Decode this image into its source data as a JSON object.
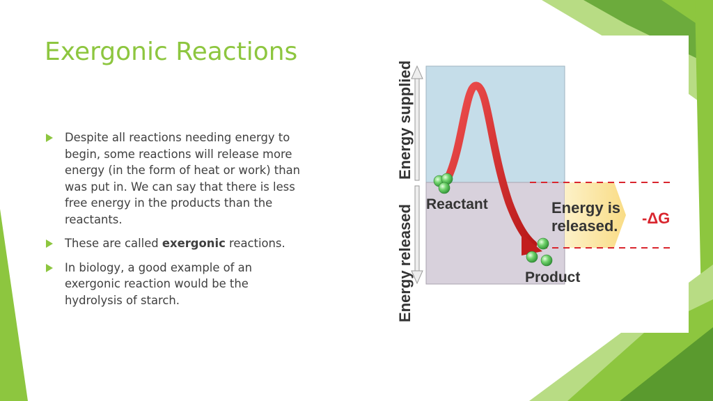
{
  "slide": {
    "title": "Exergonic Reactions",
    "colors": {
      "accent": "#8dc63f",
      "accent_dark": "#5a9a2e",
      "body_text": "#404040",
      "supplied_region": "#c5dde9",
      "released_region": "#d8d1dc",
      "curve": "#d62222",
      "energy_band": "#fde9b0"
    },
    "bullets": [
      {
        "text": "Despite all reactions needing energy to begin, some reactions will release more energy (in the form of heat or work) than was put in. We can say that there is less free energy in the products than the reactants."
      },
      {
        "before": "These are called ",
        "bold": "exergonic",
        "after": " reactions."
      },
      {
        "text": "In biology, a good example of an exergonic reaction would be the hydrolysis of starch."
      }
    ]
  },
  "diagram": {
    "axis_top_label": "Energy supplied",
    "axis_bottom_label": "Energy released",
    "reactant_label": "Reactant",
    "product_label": "Product",
    "energy_text_line1": "Energy is",
    "energy_text_line2": "released.",
    "delta_g_label": "-ΔG"
  }
}
